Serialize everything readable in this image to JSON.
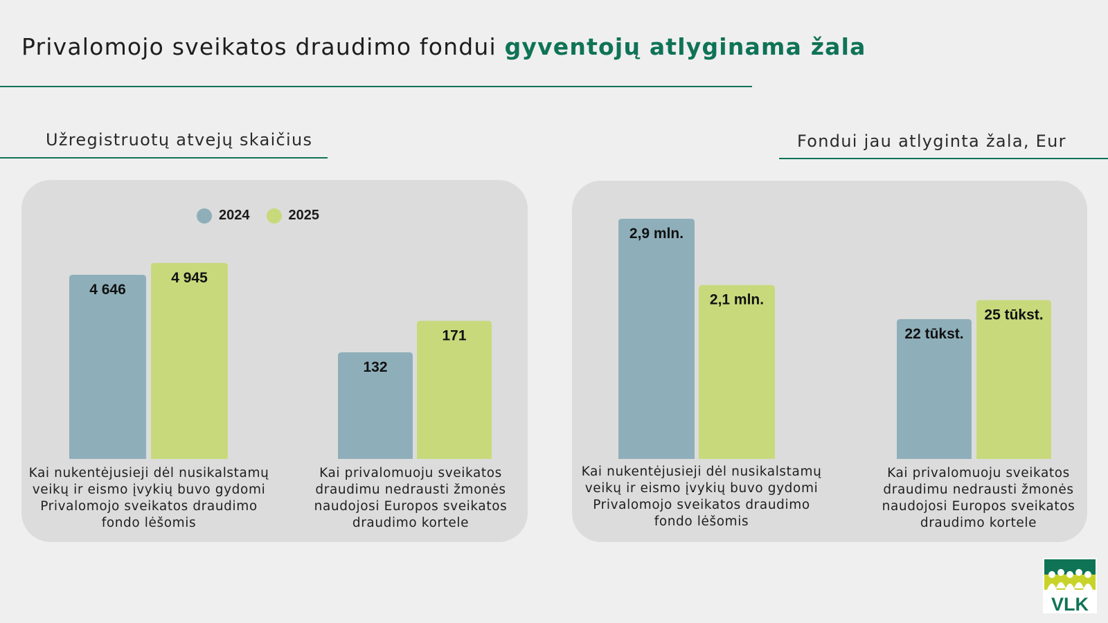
{
  "title": {
    "prefix": "Privalomojo sveikatos draudimo fondui",
    "accent": "gyventojų atlyginama žala"
  },
  "colors": {
    "accent": "#0f7356",
    "series_2024": "#8eafba",
    "series_2025": "#c8d97c",
    "panel": "#dcdcdc"
  },
  "logo": {
    "text": "VLK",
    "icon": "vlk-people-logo"
  },
  "chart_data": [
    {
      "type": "bar",
      "title": "Užregistruotų atvejų skaičius",
      "categories": [
        "Kai nukentėjusieji dėl nusikalstamų veikų ir eismo įvykių buvo gydomi Privalomojo sveikatos draudimo fondo lėšomis",
        "Kai privalomuoju sveikatos draudimu nedrausti žmonės naudojosi Europos sveikatos draudimo kortele"
      ],
      "legend": "top-center",
      "series": [
        {
          "name": "2024",
          "color": "#8eafba",
          "values": [
            4646,
            132
          ],
          "labels": [
            "4 646",
            "132"
          ]
        },
        {
          "name": "2025",
          "color": "#c8d97c",
          "values": [
            4945,
            171
          ],
          "labels": [
            "4 945",
            "171"
          ]
        }
      ]
    },
    {
      "type": "bar",
      "title": "Fondui jau atlyginta žala, Eur",
      "categories": [
        "Kai nukentėjusieji dėl nusikalstamų veikų ir eismo įvykių buvo gydomi Privalomojo sveikatos draudimo fondo lėšomis",
        "Kai privalomuoju sveikatos draudimu nedrausti žmonės naudojosi Europos sveikatos draudimo kortele"
      ],
      "series": [
        {
          "name": "2024",
          "color": "#8eafba",
          "values": [
            2900000,
            22000
          ],
          "labels": [
            "2,9 mln.",
            "22 tūkst."
          ]
        },
        {
          "name": "2025",
          "color": "#c8d97c",
          "values": [
            2100000,
            25000
          ],
          "labels": [
            "2,1 mln.",
            "25 tūkst."
          ]
        }
      ]
    }
  ]
}
